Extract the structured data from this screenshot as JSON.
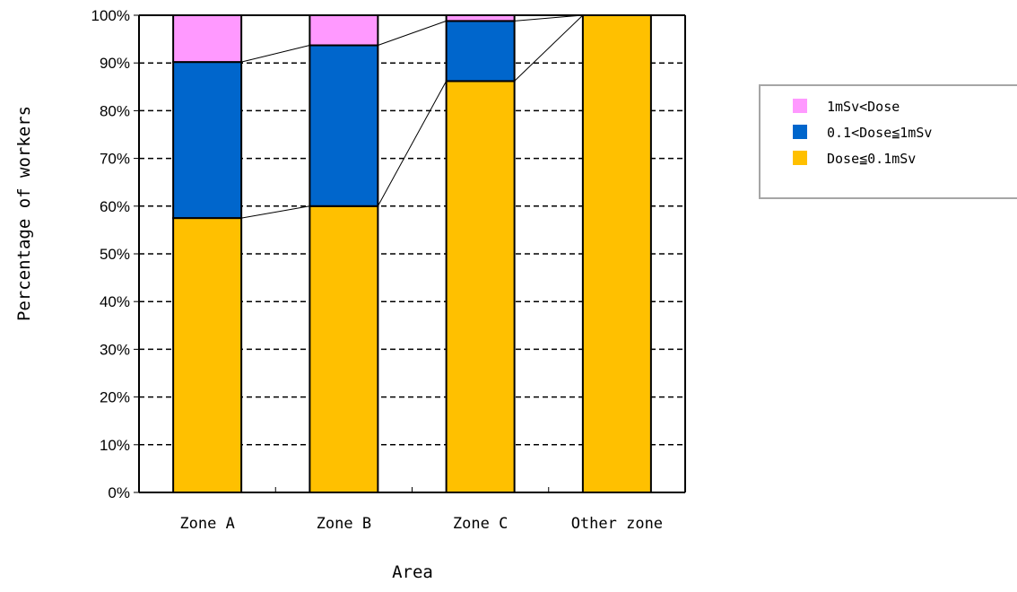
{
  "chart_data": {
    "type": "bar",
    "stacked": true,
    "percent_scale": true,
    "title": "",
    "xlabel": "Area",
    "ylabel": "Percentage of workers",
    "ylim": [
      0,
      100
    ],
    "yticks": [
      "0%",
      "10%",
      "20%",
      "30%",
      "40%",
      "50%",
      "60%",
      "70%",
      "80%",
      "90%",
      "100%"
    ],
    "categories": [
      "Zone A",
      "Zone B",
      "Zone C",
      "Other zone"
    ],
    "series": [
      {
        "name": "Dose≦0.1mSv",
        "color": "#FFC000",
        "values": [
          57.5,
          60.0,
          86.2,
          100.0
        ]
      },
      {
        "name": "0.1<Dose≦1mSv",
        "color": "#0066CC",
        "values": [
          32.7,
          33.7,
          12.6,
          0.0
        ]
      },
      {
        "name": "1mSv<Dose",
        "color": "#FF99FF",
        "values": [
          9.8,
          6.3,
          1.2,
          0.0
        ]
      }
    ],
    "legend": {
      "position": "right",
      "entries": [
        "1mSv<Dose",
        "0.1<Dose≦1mSv",
        "Dose≦0.1mSv"
      ]
    },
    "grid": {
      "horizontal": true,
      "style": "dashed"
    },
    "series_lines": true
  }
}
